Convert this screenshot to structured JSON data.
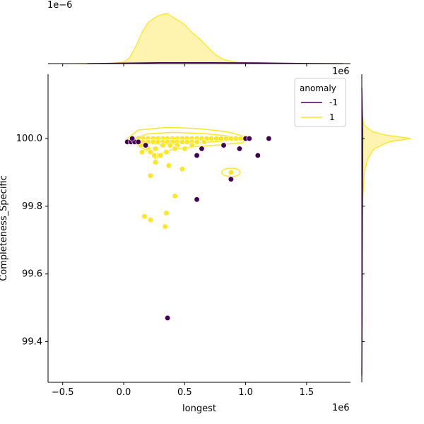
{
  "chart_data": {
    "type": "scatter",
    "kind": "jointplot",
    "xlabel": "longest",
    "ylabel": "Completeness_Specific",
    "x_exponent_label": "1e6",
    "y_top_exponent_label": "1e6",
    "top_marginal_exponent_label": "1e−6",
    "xlim": [
      -0.62,
      1.86
    ],
    "ylim": [
      99.28,
      100.19
    ],
    "xticks": [
      -0.5,
      0.0,
      0.5,
      1.0,
      1.5
    ],
    "xtick_labels": [
      "−0.5",
      "0.0",
      "0.5",
      "1.0",
      "1.5"
    ],
    "yticks": [
      99.4,
      99.6,
      99.8,
      100.0
    ],
    "ytick_labels": [
      "99.4",
      "99.6",
      "99.8",
      "100.0"
    ],
    "legend": {
      "title": "anomaly",
      "placement": "top-right",
      "entries": [
        {
          "label": "-1",
          "color": "#440154"
        },
        {
          "label": "1",
          "color": "#fde725"
        }
      ]
    },
    "colors": {
      "minus1": "#440154",
      "plus1": "#fde725",
      "plus1_fill": "#fff3b0"
    },
    "series": [
      {
        "name": "-1",
        "color": "#440154",
        "points": [
          [
            0.03,
            99.99
          ],
          [
            0.06,
            99.99
          ],
          [
            0.09,
            99.99
          ],
          [
            0.12,
            99.99
          ],
          [
            0.18,
            99.98
          ],
          [
            0.07,
            100.0
          ],
          [
            0.6,
            99.95
          ],
          [
            0.64,
            99.97
          ],
          [
            0.82,
            99.98
          ],
          [
            0.95,
            99.97
          ],
          [
            1.0,
            100.0
          ],
          [
            1.03,
            100.0
          ],
          [
            1.1,
            99.95
          ],
          [
            1.19,
            100.0
          ],
          [
            0.88,
            99.88
          ],
          [
            0.6,
            99.82
          ],
          [
            0.36,
            99.47
          ]
        ]
      },
      {
        "name": "1",
        "color": "#fde725",
        "points": [
          [
            0.08,
            100.0
          ],
          [
            0.12,
            100.0
          ],
          [
            0.16,
            100.0
          ],
          [
            0.2,
            100.0
          ],
          [
            0.24,
            100.0
          ],
          [
            0.28,
            100.0
          ],
          [
            0.32,
            100.0
          ],
          [
            0.36,
            100.0
          ],
          [
            0.4,
            100.0
          ],
          [
            0.44,
            100.0
          ],
          [
            0.48,
            100.0
          ],
          [
            0.52,
            100.0
          ],
          [
            0.56,
            100.0
          ],
          [
            0.6,
            100.0
          ],
          [
            0.64,
            100.0
          ],
          [
            0.68,
            100.0
          ],
          [
            0.72,
            100.0
          ],
          [
            0.76,
            100.0
          ],
          [
            0.8,
            100.0
          ],
          [
            0.84,
            100.0
          ],
          [
            0.88,
            100.0
          ],
          [
            0.92,
            100.0
          ],
          [
            0.96,
            100.0
          ],
          [
            1.0,
            100.0
          ],
          [
            0.12,
            99.99
          ],
          [
            0.16,
            99.99
          ],
          [
            0.2,
            99.99
          ],
          [
            0.24,
            99.99
          ],
          [
            0.28,
            99.99
          ],
          [
            0.32,
            99.99
          ],
          [
            0.36,
            99.99
          ],
          [
            0.4,
            99.99
          ],
          [
            0.44,
            99.99
          ],
          [
            0.48,
            99.99
          ],
          [
            0.52,
            99.99
          ],
          [
            0.56,
            99.99
          ],
          [
            0.6,
            99.99
          ],
          [
            0.66,
            99.99
          ],
          [
            0.14,
            99.98
          ],
          [
            0.2,
            99.97
          ],
          [
            0.26,
            99.97
          ],
          [
            0.32,
            99.98
          ],
          [
            0.38,
            99.98
          ],
          [
            0.44,
            99.98
          ],
          [
            0.5,
            99.97
          ],
          [
            0.56,
            99.98
          ],
          [
            0.15,
            99.96
          ],
          [
            0.22,
            99.96
          ],
          [
            0.28,
            99.95
          ],
          [
            0.35,
            99.96
          ],
          [
            0.42,
            99.97
          ],
          [
            0.25,
            99.95
          ],
          [
            0.3,
            99.95
          ],
          [
            0.26,
            99.93
          ],
          [
            0.37,
            99.92
          ],
          [
            0.48,
            99.91
          ],
          [
            0.22,
            99.89
          ],
          [
            0.88,
            99.9
          ],
          [
            0.42,
            99.83
          ],
          [
            0.35,
            99.78
          ],
          [
            0.17,
            99.77
          ],
          [
            0.22,
            99.76
          ],
          [
            0.34,
            99.74
          ]
        ]
      }
    ],
    "kde_marginals": "top: density of longest per anomaly class; right: density of Completeness_Specific per anomaly class"
  }
}
